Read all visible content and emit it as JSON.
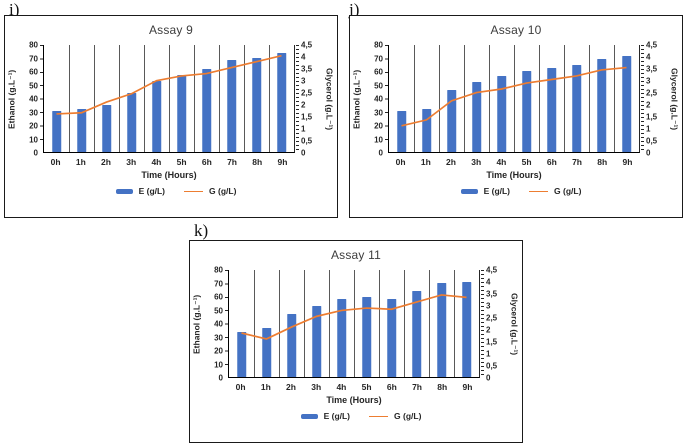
{
  "figure": {
    "panel_labels": [
      "i)",
      "j)",
      "k)"
    ],
    "bar_color": "#4472C4",
    "line_color": "#ED7D31",
    "gridline_color": "#595959"
  },
  "chart_data": [
    {
      "type": "bar",
      "subtype": "combo-bar-line-dual-axis",
      "panel_label": "i)",
      "title": "Assay 9",
      "categories": [
        "0h",
        "1h",
        "2h",
        "3h",
        "4h",
        "5h",
        "6h",
        "7h",
        "8h",
        "9h"
      ],
      "xlabel": "Time (Hours)",
      "ylabel_left": "Ethanol (g.L⁻¹)",
      "ylabel_right": "Glycerol (g.L⁻¹)",
      "ylim_left": [
        0,
        80
      ],
      "ylim_right": [
        0,
        4.5
      ],
      "yticks_left": [
        "80",
        "70",
        "60",
        "50",
        "40",
        "30",
        "20",
        "10",
        "0"
      ],
      "yticks_right": [
        "4,5",
        "4",
        "3,5",
        "3",
        "2,5",
        "2",
        "1,5",
        "1",
        "0,5",
        "0"
      ],
      "grid": "vertical-major-only",
      "legend_position": "bottom",
      "series": [
        {
          "name": "E (g/L)",
          "type": "bar",
          "axis": "left",
          "color": "#4472C4",
          "values": [
            31,
            32,
            35,
            44,
            53,
            57.5,
            62,
            68.5,
            70.5,
            74
          ]
        },
        {
          "name": "G (g/L)",
          "type": "line",
          "axis": "right",
          "color": "#ED7D31",
          "values": [
            1.6,
            1.65,
            2.1,
            2.45,
            3.0,
            3.2,
            3.3,
            3.55,
            3.8,
            4.05
          ]
        }
      ]
    },
    {
      "type": "bar",
      "subtype": "combo-bar-line-dual-axis",
      "panel_label": "j)",
      "title": "Assay 10",
      "categories": [
        "0h",
        "1h",
        "2h",
        "3h",
        "4h",
        "5h",
        "6h",
        "7h",
        "8h",
        "9h"
      ],
      "xlabel": "Time (Hours)",
      "ylabel_left": "Ethanol (g.L⁻¹)",
      "ylabel_right": "Glycerol (g.L⁻¹)",
      "ylim_left": [
        0,
        80
      ],
      "ylim_right": [
        0,
        4.5
      ],
      "yticks_left": [
        "80",
        "70",
        "60",
        "50",
        "40",
        "30",
        "20",
        "10",
        "0"
      ],
      "yticks_right": [
        "4,5",
        "4",
        "3,5",
        "3",
        "2,5",
        "2",
        "1,5",
        "1",
        "0,5",
        "0"
      ],
      "grid": "vertical-major-only",
      "legend_position": "bottom",
      "series": [
        {
          "name": "E (g/L)",
          "type": "bar",
          "axis": "left",
          "color": "#4472C4",
          "values": [
            31,
            32.5,
            46,
            52,
            57,
            60.5,
            62.5,
            65,
            69.5,
            72
          ]
        },
        {
          "name": "G (g/L)",
          "type": "line",
          "axis": "right",
          "color": "#ED7D31",
          "values": [
            1.1,
            1.35,
            2.15,
            2.5,
            2.65,
            2.9,
            3.05,
            3.2,
            3.45,
            3.55
          ]
        }
      ]
    },
    {
      "type": "bar",
      "subtype": "combo-bar-line-dual-axis",
      "panel_label": "k)",
      "title": "Assay 11",
      "categories": [
        "0h",
        "1h",
        "2h",
        "3h",
        "4h",
        "5h",
        "6h",
        "7h",
        "8h",
        "9h"
      ],
      "xlabel": "Time (Hours)",
      "ylabel_left": "Ethanol (g.L⁻¹)",
      "ylabel_right": "Glycerol (g.L⁻¹)",
      "ylim_left": [
        0,
        80
      ],
      "ylim_right": [
        0,
        4.5
      ],
      "yticks_left": [
        "80",
        "70",
        "60",
        "50",
        "40",
        "30",
        "20",
        "10",
        "0"
      ],
      "yticks_right": [
        "4,5",
        "4",
        "3,5",
        "3",
        "2,5",
        "2",
        "1,5",
        "1",
        "0,5",
        "0"
      ],
      "grid": "vertical-major-only",
      "legend_position": "bottom",
      "series": [
        {
          "name": "E (g/L)",
          "type": "bar",
          "axis": "left",
          "color": "#4472C4",
          "values": [
            34,
            36.5,
            47,
            53,
            58,
            60,
            58.5,
            64,
            70.5,
            71
          ]
        },
        {
          "name": "G (g/L)",
          "type": "line",
          "axis": "right",
          "color": "#ED7D31",
          "values": [
            1.85,
            1.6,
            2.1,
            2.55,
            2.8,
            2.9,
            2.85,
            3.15,
            3.45,
            3.35
          ]
        }
      ]
    }
  ]
}
